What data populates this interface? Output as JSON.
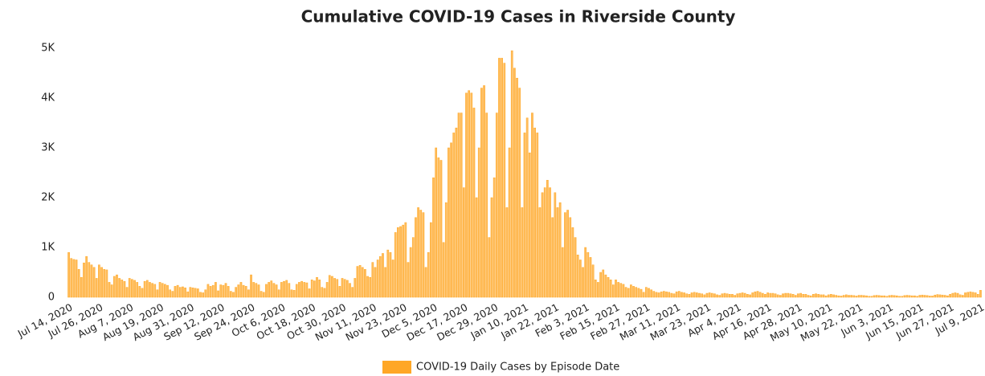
{
  "chart_data": {
    "type": "bar",
    "title": "Cumulative COVID-19 Cases in Riverside County",
    "categories": [
      "Jul 14, 2020",
      null,
      null,
      null,
      null,
      null,
      null,
      null,
      null,
      null,
      null,
      null,
      "Jul 26, 2020",
      null,
      null,
      null,
      null,
      null,
      null,
      null,
      null,
      null,
      null,
      null,
      "Aug 7, 2020",
      null,
      null,
      null,
      null,
      null,
      null,
      null,
      null,
      null,
      null,
      null,
      "Aug 19, 2020",
      null,
      null,
      null,
      null,
      null,
      null,
      null,
      null,
      null,
      null,
      null,
      "Aug 31, 2020",
      null,
      null,
      null,
      null,
      null,
      null,
      null,
      null,
      null,
      null,
      null,
      "Sep 12, 2020",
      null,
      null,
      null,
      null,
      null,
      null,
      null,
      null,
      null,
      null,
      null,
      "Sep 24, 2020",
      null,
      null,
      null,
      null,
      null,
      null,
      null,
      null,
      null,
      null,
      null,
      "Oct 6, 2020",
      null,
      null,
      null,
      null,
      null,
      null,
      null,
      null,
      null,
      null,
      null,
      "Oct 18, 2020",
      null,
      null,
      null,
      null,
      null,
      null,
      null,
      null,
      null,
      null,
      null,
      "Oct 30, 2020",
      null,
      null,
      null,
      null,
      null,
      null,
      null,
      null,
      null,
      null,
      null,
      "Nov 11, 2020",
      null,
      null,
      null,
      null,
      null,
      null,
      null,
      null,
      null,
      null,
      null,
      "Nov 23, 2020",
      null,
      null,
      null,
      null,
      null,
      null,
      null,
      null,
      null,
      null,
      null,
      "Dec 5, 2020",
      null,
      null,
      null,
      null,
      null,
      null,
      null,
      null,
      null,
      null,
      null,
      "Dec 17, 2020",
      null,
      null,
      null,
      null,
      null,
      null,
      null,
      null,
      null,
      null,
      null,
      "Dec 29, 2020",
      null,
      null,
      null,
      null,
      null,
      null,
      null,
      null,
      null,
      null,
      null,
      "Jan 10, 2021",
      null,
      null,
      null,
      null,
      null,
      null,
      null,
      null,
      null,
      null,
      null,
      "Jan 22, 2021",
      null,
      null,
      null,
      null,
      null,
      null,
      null,
      null,
      null,
      null,
      null,
      "Feb 3, 2021",
      null,
      null,
      null,
      null,
      null,
      null,
      null,
      null,
      null,
      null,
      null,
      "Feb 15, 2021",
      null,
      null,
      null,
      null,
      null,
      null,
      null,
      null,
      null,
      null,
      null,
      "Feb 27, 2021",
      null,
      null,
      null,
      null,
      null,
      null,
      null,
      null,
      null,
      null,
      null,
      "Mar 11, 2021",
      null,
      null,
      null,
      null,
      null,
      null,
      null,
      null,
      null,
      null,
      null,
      "Mar 23, 2021",
      null,
      null,
      null,
      null,
      null,
      null,
      null,
      null,
      null,
      null,
      null,
      "Apr 4, 2021",
      null,
      null,
      null,
      null,
      null,
      null,
      null,
      null,
      null,
      null,
      null,
      "Apr 16, 2021",
      null,
      null,
      null,
      null,
      null,
      null,
      null,
      null,
      null,
      null,
      null,
      "Apr 28, 2021",
      null,
      null,
      null,
      null,
      null,
      null,
      null,
      null,
      null,
      null,
      null,
      "May 10, 2021",
      null,
      null,
      null,
      null,
      null,
      null,
      null,
      null,
      null,
      null,
      null,
      "May 22, 2021",
      null,
      null,
      null,
      null,
      null,
      null,
      null,
      null,
      null,
      null,
      null,
      "Jun 3, 2021",
      null,
      null,
      null,
      null,
      null,
      null,
      null,
      null,
      null,
      null,
      null,
      "Jun 15, 2021",
      null,
      null,
      null,
      null,
      null,
      null,
      null,
      null,
      null,
      null,
      null,
      "Jun 27, 2021",
      null,
      null,
      null,
      null,
      null,
      null,
      null,
      null,
      null,
      null,
      null,
      "Jul 9, 2021"
    ],
    "series": [
      {
        "name": "COVID-19 Daily Cases by Episode Date",
        "color": "#ffa726",
        "values": [
          900,
          780,
          760,
          750,
          560,
          400,
          690,
          820,
          700,
          650,
          600,
          380,
          650,
          600,
          560,
          550,
          300,
          250,
          420,
          450,
          380,
          350,
          320,
          200,
          380,
          360,
          340,
          300,
          220,
          180,
          320,
          340,
          300,
          280,
          260,
          150,
          300,
          280,
          260,
          240,
          150,
          120,
          220,
          240,
          200,
          210,
          190,
          110,
          200,
          190,
          180,
          170,
          100,
          90,
          150,
          260,
          220,
          240,
          300,
          130,
          250,
          240,
          280,
          220,
          120,
          100,
          200,
          250,
          300,
          240,
          220,
          150,
          450,
          300,
          280,
          250,
          120,
          100,
          260,
          300,
          330,
          280,
          250,
          150,
          300,
          320,
          340,
          280,
          150,
          140,
          260,
          300,
          320,
          300,
          290,
          170,
          350,
          330,
          400,
          350,
          200,
          180,
          300,
          440,
          420,
          380,
          360,
          220,
          380,
          360,
          340,
          280,
          200,
          380,
          620,
          640,
          600,
          560,
          420,
          400,
          700,
          600,
          750,
          820,
          880,
          600,
          950,
          900,
          750,
          1300,
          1400,
          1420,
          1450,
          1500,
          700,
          1000,
          1200,
          1600,
          1800,
          1750,
          1700,
          600,
          900,
          1500,
          2400,
          3000,
          2800,
          2750,
          1100,
          1900,
          3000,
          3100,
          3300,
          3400,
          3700,
          3700,
          2200,
          4100,
          4150,
          4100,
          3800,
          2000,
          3000,
          4200,
          4250,
          3700,
          1200,
          2000,
          2400,
          3700,
          4800,
          4800,
          4700,
          1800,
          3000,
          4950,
          4600,
          4400,
          4200,
          1800,
          3300,
          3600,
          2900,
          3700,
          3400,
          3300,
          1800,
          2100,
          2200,
          2350,
          2200,
          1600,
          2100,
          1800,
          1900,
          1000,
          1700,
          1750,
          1600,
          1400,
          1200,
          850,
          750,
          600,
          1000,
          900,
          800,
          650,
          350,
          300,
          500,
          550,
          450,
          400,
          350,
          250,
          350,
          300,
          280,
          260,
          200,
          180,
          250,
          220,
          200,
          180,
          160,
          100,
          200,
          180,
          150,
          120,
          100,
          90,
          110,
          120,
          110,
          100,
          80,
          70,
          110,
          120,
          100,
          90,
          70,
          60,
          90,
          100,
          90,
          80,
          70,
          50,
          80,
          90,
          80,
          70,
          50,
          40,
          70,
          80,
          70,
          60,
          60,
          40,
          70,
          80,
          90,
          80,
          60,
          50,
          90,
          110,
          120,
          100,
          80,
          60,
          90,
          80,
          80,
          70,
          50,
          40,
          70,
          80,
          80,
          70,
          60,
          40,
          70,
          80,
          60,
          60,
          40,
          30,
          60,
          70,
          60,
          50,
          50,
          30,
          50,
          60,
          50,
          40,
          30,
          25,
          40,
          50,
          40,
          40,
          35,
          25,
          40,
          40,
          35,
          30,
          20,
          20,
          35,
          40,
          35,
          30,
          30,
          20,
          35,
          40,
          35,
          30,
          20,
          20,
          35,
          40,
          35,
          30,
          30,
          20,
          40,
          45,
          40,
          35,
          25,
          25,
          45,
          55,
          50,
          45,
          40,
          30,
          60,
          80,
          90,
          80,
          50,
          40,
          90,
          100,
          110,
          100,
          90,
          60,
          140
        ]
      }
    ],
    "ylim": [
      0,
      5000
    ],
    "yticks": [
      0,
      {
        "value": 1000,
        "label": "1K"
      },
      {
        "value": 2000,
        "label": "2K"
      },
      {
        "value": 3000,
        "label": "3K"
      },
      {
        "value": 4000,
        "label": "4K"
      },
      {
        "value": 5000,
        "label": "5K"
      }
    ],
    "legend": "bottom"
  }
}
